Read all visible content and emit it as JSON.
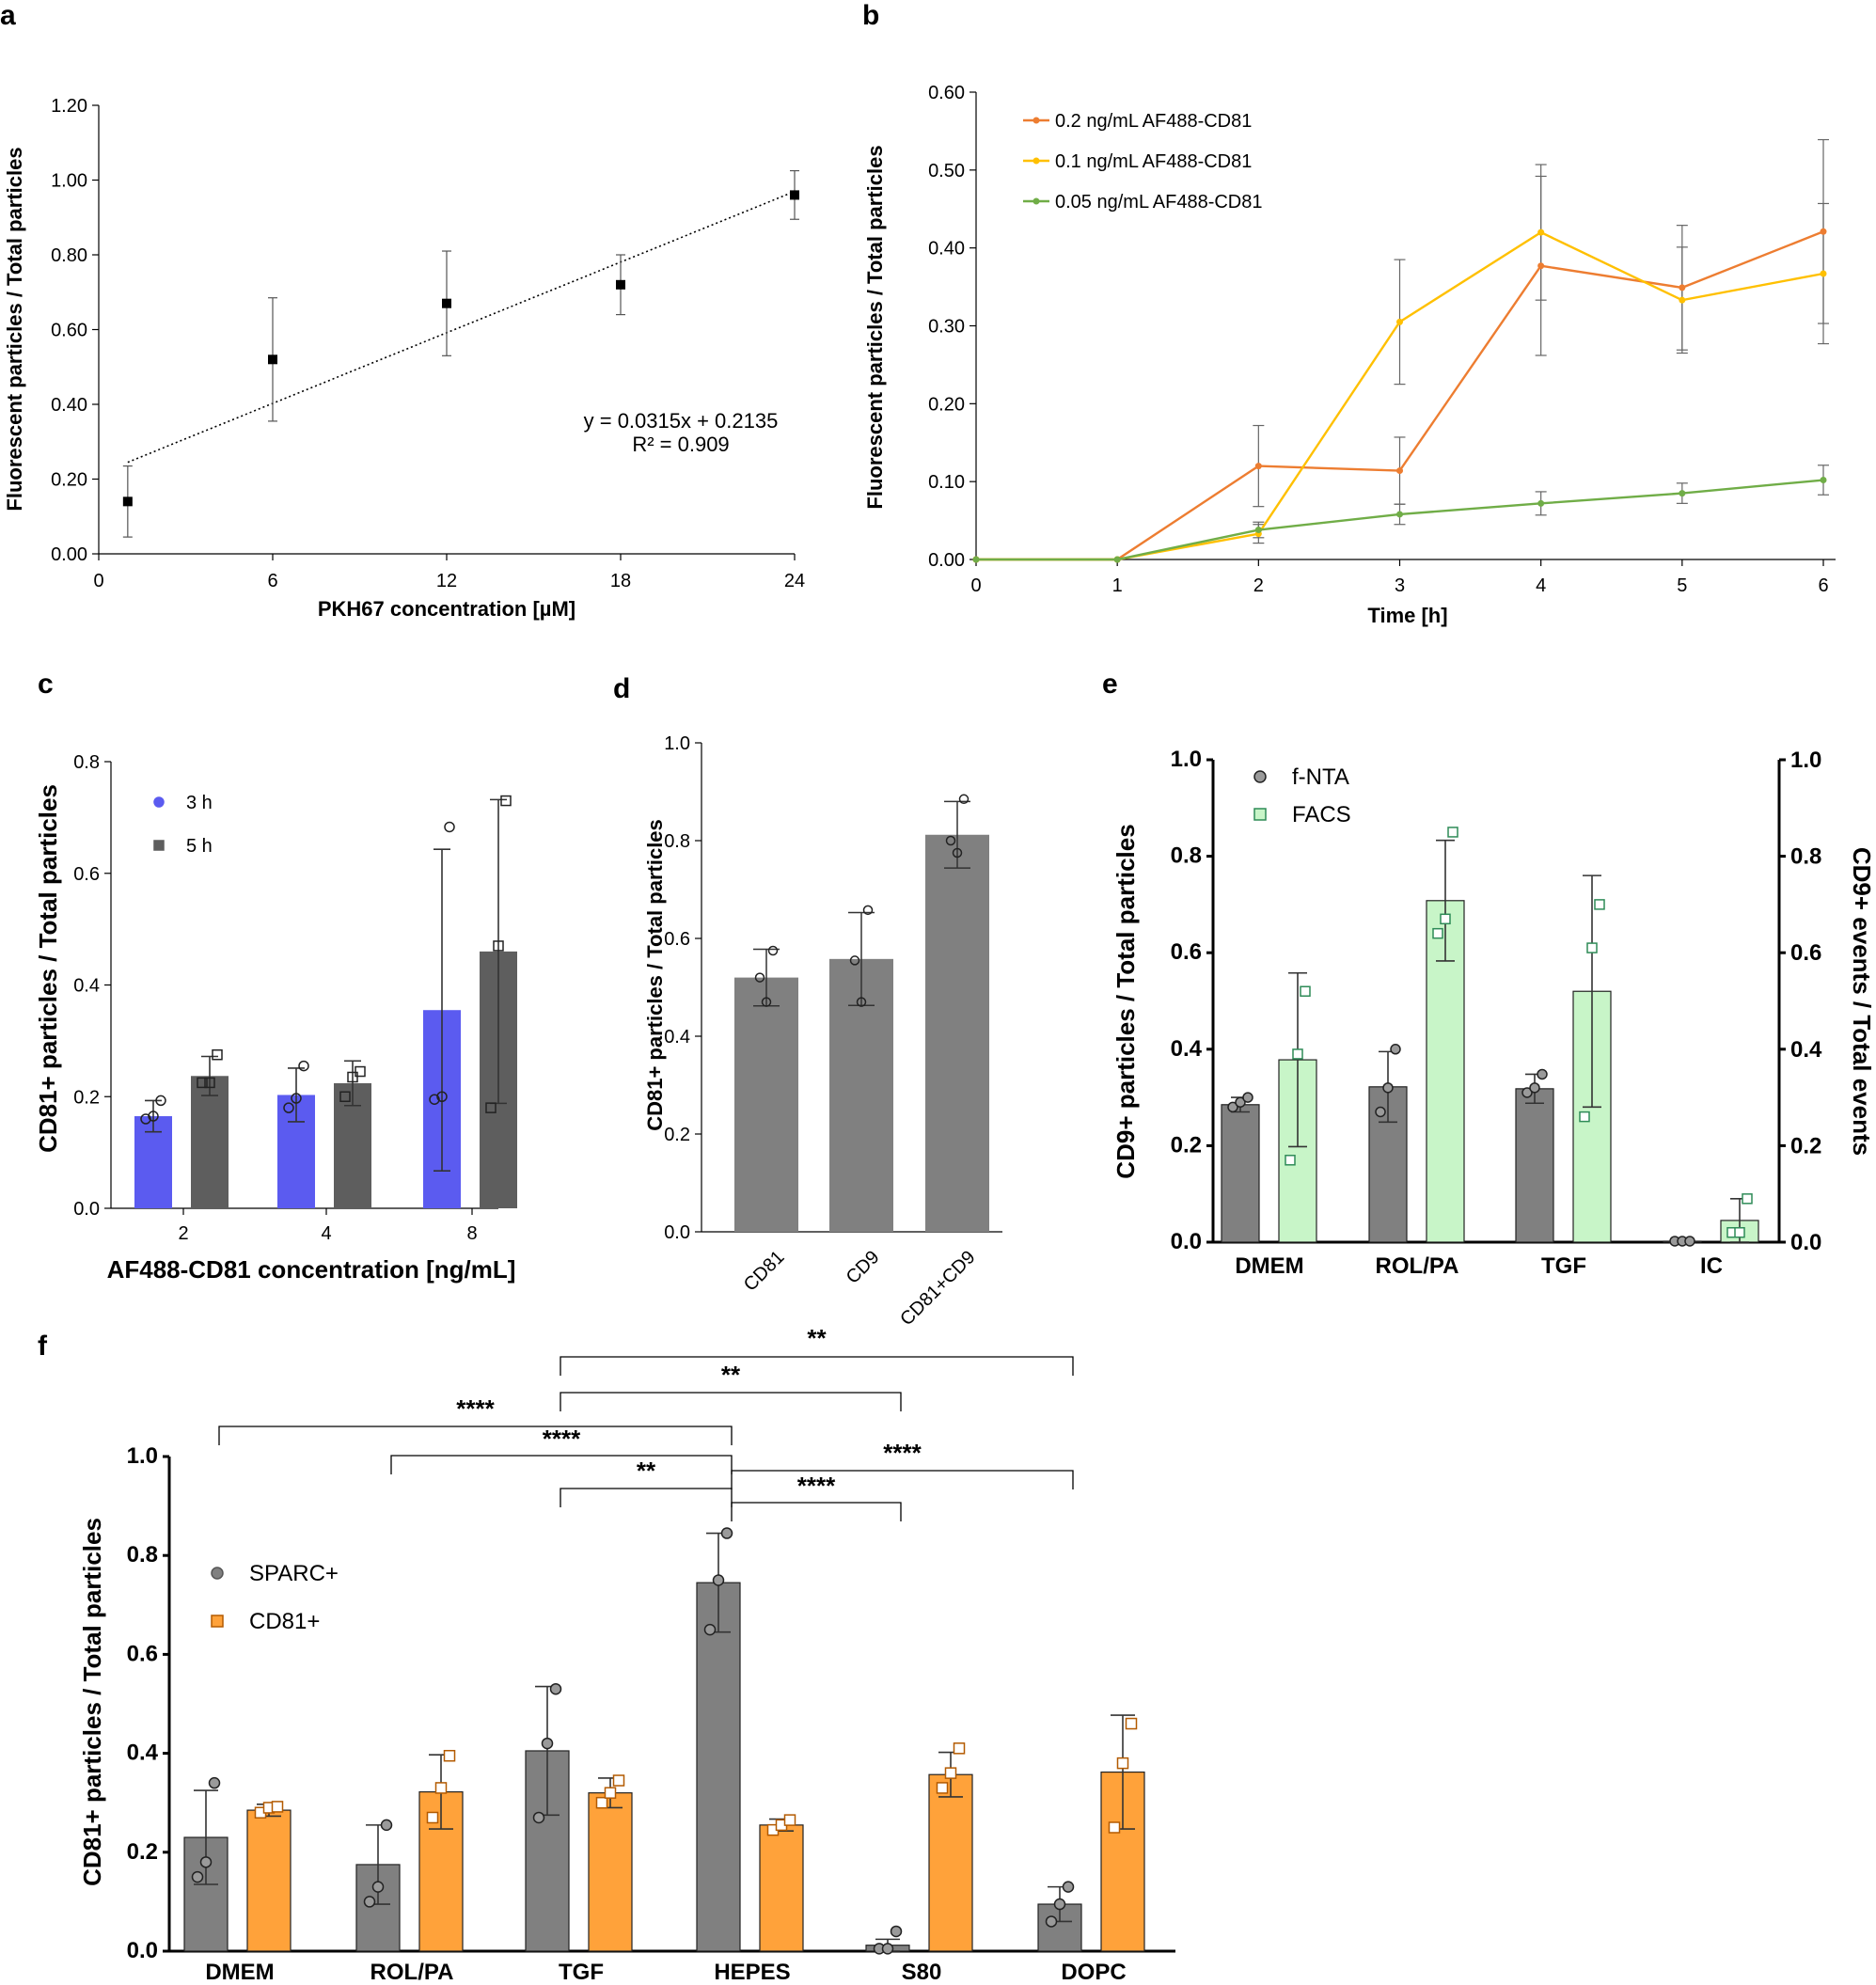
{
  "panel_labels": {
    "a": "a",
    "b": "b",
    "c": "c",
    "d": "d",
    "e": "e",
    "f": "f"
  },
  "chart_data": [
    {
      "id": "a",
      "type": "scatter",
      "xlabel": "PKH67 concentration [µM]",
      "ylabel": "Fluorescent particles / Total particles",
      "xlim": [
        0,
        24
      ],
      "ylim": [
        0,
        1.2
      ],
      "xticks": [
        "0",
        "6",
        "12",
        "18",
        "24"
      ],
      "yticks": [
        "0.00",
        "0.20",
        "0.40",
        "0.60",
        "0.80",
        "1.00",
        "1.20"
      ],
      "x": [
        1,
        6,
        12,
        18,
        24
      ],
      "y": [
        0.14,
        0.52,
        0.67,
        0.72,
        0.96
      ],
      "err": [
        0.095,
        0.165,
        0.14,
        0.08,
        0.065
      ],
      "trendline": {
        "slope": 0.0315,
        "intercept": 0.2135,
        "x_range": [
          1,
          24
        ]
      },
      "equation": "y = 0.0315x + 0.2135",
      "r2": "R² = 0.909",
      "color": "#000000"
    },
    {
      "id": "b",
      "type": "line",
      "xlabel": "Time [h]",
      "ylabel": "Fluorescent particles / Total particles",
      "xlim": [
        0,
        6
      ],
      "ylim": [
        0,
        0.6
      ],
      "xticks": [
        "0",
        "1",
        "2",
        "3",
        "4",
        "5",
        "6"
      ],
      "yticks": [
        "0.00",
        "0.10",
        "0.20",
        "0.30",
        "0.40",
        "0.50",
        "0.60"
      ],
      "x": [
        0,
        1,
        2,
        3,
        4,
        5,
        6
      ],
      "series": [
        {
          "name": "0.2 ng/mL AF488-CD81",
          "color": "#ED7D31",
          "values": [
            0,
            0,
            0.12,
            0.114,
            0.377,
            0.349,
            0.421
          ],
          "err": [
            0,
            0,
            0.052,
            0.043,
            0.115,
            0.08,
            0.118
          ]
        },
        {
          "name": "0.1 ng/mL AF488-CD81",
          "color": "#FFC000",
          "values": [
            0,
            0,
            0.033,
            0.305,
            0.42,
            0.333,
            0.367
          ],
          "err": [
            0,
            0,
            0.012,
            0.08,
            0.087,
            0.068,
            0.09
          ]
        },
        {
          "name": "0.05 ng/mL AF488-CD81",
          "color": "#70AD47",
          "values": [
            0,
            0,
            0.038,
            0.058,
            0.072,
            0.085,
            0.102
          ],
          "err": [
            0,
            0,
            0.01,
            0.013,
            0.015,
            0.013,
            0.019
          ]
        }
      ]
    },
    {
      "id": "c",
      "type": "bar",
      "xlabel": "AF488-CD81 concentration [ng/mL]",
      "ylabel": "CD81+ particles / Total particles",
      "ylim": [
        0,
        0.8
      ],
      "yticks": [
        "0.0",
        "0.2",
        "0.4",
        "0.6",
        "0.8"
      ],
      "categories": [
        "2",
        "4",
        "8"
      ],
      "series": [
        {
          "name": "3 h",
          "color": "#5B5BF0",
          "marker": "circle",
          "values": [
            0.165,
            0.203,
            0.355
          ],
          "err": [
            0.028,
            0.048,
            0.288
          ],
          "points": [
            [
              0.16,
              0.165,
              0.193
            ],
            [
              0.18,
              0.197,
              0.255
            ],
            [
              0.195,
              0.2,
              0.683
            ]
          ]
        },
        {
          "name": "5 h",
          "color": "#5E5E5E",
          "marker": "square",
          "values": [
            0.237,
            0.224,
            0.46
          ],
          "err": [
            0.035,
            0.04,
            0.272
          ],
          "points": [
            [
              0.225,
              0.225,
              0.275
            ],
            [
              0.2,
              0.235,
              0.245
            ],
            [
              0.18,
              0.47,
              0.73
            ]
          ]
        }
      ]
    },
    {
      "id": "d",
      "type": "bar",
      "xlabel": "",
      "ylabel": "CD81+ particles / Total particles",
      "ylim": [
        0,
        1.0
      ],
      "yticks": [
        "0.0",
        "0.2",
        "0.4",
        "0.6",
        "0.8",
        "1.0"
      ],
      "categories": [
        "CD81",
        "CD9",
        "CD81+CD9"
      ],
      "values": [
        0.52,
        0.558,
        0.812
      ],
      "err": [
        0.058,
        0.095,
        0.068
      ],
      "points": [
        [
          0.47,
          0.52,
          0.575
        ],
        [
          0.47,
          0.555,
          0.658
        ],
        [
          0.775,
          0.8,
          0.885
        ]
      ],
      "color": "#808080"
    },
    {
      "id": "e",
      "type": "bar",
      "xlabel": "",
      "ylabel": "CD9+ particles / Total particles",
      "ylabel_right": "CD9+ events / Total events",
      "ylim": [
        0,
        1.0
      ],
      "yticks": [
        "0.0",
        "0.2",
        "0.4",
        "0.6",
        "0.8",
        "1.0"
      ],
      "categories": [
        "DMEM",
        "ROL/PA",
        "TGF",
        "IC"
      ],
      "series": [
        {
          "name": "f-NTA",
          "color": "#808080",
          "marker": "circle",
          "values": [
            0.285,
            0.322,
            0.318,
            0.002
          ],
          "err": [
            0.015,
            0.073,
            0.03,
            0.001
          ],
          "points": [
            [
              0.28,
              0.29,
              0.3
            ],
            [
              0.27,
              0.32,
              0.4
            ],
            [
              0.31,
              0.32,
              0.348
            ],
            [
              0.002,
              0.002,
              0.002
            ]
          ]
        },
        {
          "name": "FACS",
          "color": "#C8F5C8",
          "marker": "square",
          "values": [
            0.378,
            0.708,
            0.52,
            0.045
          ],
          "err": [
            0.18,
            0.125,
            0.24,
            0.045
          ],
          "points": [
            [
              0.17,
              0.39,
              0.52
            ],
            [
              0.64,
              0.67,
              0.85
            ],
            [
              0.26,
              0.61,
              0.7
            ],
            [
              0.02,
              0.02,
              0.09
            ]
          ]
        }
      ]
    },
    {
      "id": "f",
      "type": "bar",
      "xlabel": "",
      "ylabel": "CD81+ particles / Total particles",
      "ylim": [
        0,
        1.0
      ],
      "yticks": [
        "0.0",
        "0.2",
        "0.4",
        "0.6",
        "0.8",
        "1.0"
      ],
      "categories": [
        "DMEM",
        "ROL/PA",
        "TGF",
        "HEPES",
        "S80",
        "DOPC"
      ],
      "series": [
        {
          "name": "SPARC+",
          "color": "#808080",
          "marker": "circle",
          "values": [
            0.23,
            0.175,
            0.405,
            0.745,
            0.012,
            0.095
          ],
          "err": [
            0.095,
            0.08,
            0.13,
            0.1,
            0.012,
            0.035
          ],
          "points": [
            [
              0.15,
              0.18,
              0.34
            ],
            [
              0.1,
              0.13,
              0.255
            ],
            [
              0.27,
              0.42,
              0.53
            ],
            [
              0.65,
              0.75,
              0.845
            ],
            [
              0.005,
              0.005,
              0.04
            ],
            [
              0.06,
              0.095,
              0.13
            ]
          ]
        },
        {
          "name": "CD81+",
          "color": "#FFA23A",
          "marker": "square",
          "values": [
            0.285,
            0.322,
            0.32,
            0.255,
            0.357,
            0.362
          ],
          "err": [
            0.012,
            0.075,
            0.03,
            0.012,
            0.045,
            0.115
          ],
          "points": [
            [
              0.28,
              0.29,
              0.292
            ],
            [
              0.27,
              0.33,
              0.395
            ],
            [
              0.3,
              0.32,
              0.345
            ],
            [
              0.245,
              0.255,
              0.265
            ],
            [
              0.33,
              0.36,
              0.41
            ],
            [
              0.25,
              0.38,
              0.46
            ]
          ]
        }
      ],
      "significance": [
        {
          "label": "**",
          "from": 2,
          "to": 5
        },
        {
          "label": "**",
          "from": 2,
          "to": 4
        },
        {
          "label": "****",
          "from": 0,
          "to": 3
        },
        {
          "label": "****",
          "from": 1,
          "to": 3
        },
        {
          "label": "****",
          "from": 3,
          "to": 5
        },
        {
          "label": "**",
          "from": 2,
          "to": 3
        },
        {
          "label": "****",
          "from": 3,
          "to": 4
        }
      ]
    }
  ]
}
